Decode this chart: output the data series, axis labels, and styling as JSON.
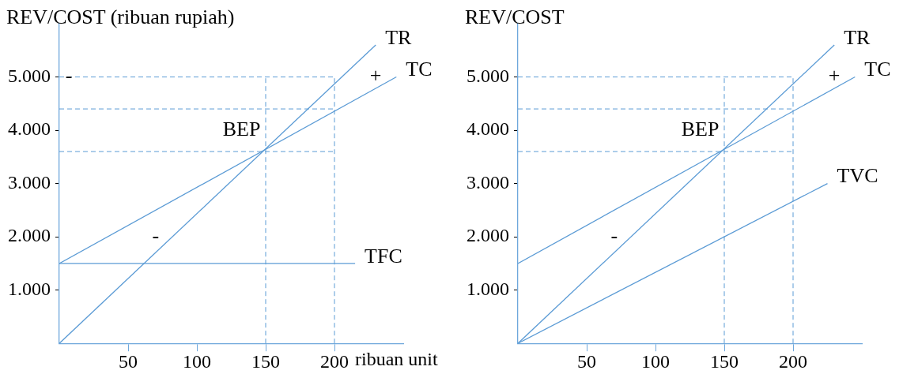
{
  "chart_data": [
    {
      "type": "line",
      "ylabel": "REV/COST (ribuan rupiah)",
      "xlabel": "ribuan unit",
      "xlim": [
        0,
        250
      ],
      "ylim": [
        0,
        6000
      ],
      "xticks": [
        50,
        100,
        150,
        200
      ],
      "yticks": [
        {
          "value": 1000,
          "label": "1.000"
        },
        {
          "value": 2000,
          "label": "2.000"
        },
        {
          "value": 3000,
          "label": "3.000"
        },
        {
          "value": 4000,
          "label": "4.000"
        },
        {
          "value": 5000,
          "label": "5.000"
        }
      ],
      "grid": false,
      "legend": false,
      "marker": "none",
      "line_style": "solid",
      "series": [
        {
          "name": "TR",
          "color": "#5b9bd5",
          "x": [
            0,
            230
          ],
          "values": [
            0,
            5600
          ]
        },
        {
          "name": "TC",
          "color": "#5b9bd5",
          "x": [
            0,
            245
          ],
          "values": [
            1500,
            5000
          ]
        },
        {
          "name": "TFC",
          "color": "#5b9bd5",
          "x": [
            0,
            215
          ],
          "values": [
            1500,
            1500
          ]
        }
      ],
      "ref_lines": [
        {
          "axis": "y",
          "value": 5000,
          "color": "#5b9bd5",
          "line_style": "dashed"
        },
        {
          "axis": "y",
          "value": 4400,
          "color": "#5b9bd5",
          "line_style": "dashed"
        },
        {
          "axis": "y",
          "value": 3600,
          "color": "#5b9bd5",
          "line_style": "dashed"
        },
        {
          "axis": "x",
          "value": 150,
          "color": "#5b9bd5",
          "line_style": "dashed"
        },
        {
          "axis": "x",
          "value": 200,
          "color": "#5b9bd5",
          "line_style": "dashed"
        }
      ],
      "annotations": [
        {
          "text": "-",
          "x": 7,
          "y": 5000
        },
        "+",
        "BEP",
        "-"
      ]
    },
    {
      "type": "line",
      "ylabel": "REV/COST",
      "xlim": [
        0,
        250
      ],
      "ylim": [
        0,
        6000
      ],
      "xticks": [
        50,
        100,
        150,
        200
      ],
      "yticks": [
        {
          "value": 1000,
          "label": "1.000"
        },
        {
          "value": 2000,
          "label": "2.000"
        },
        {
          "value": 3000,
          "label": "3.000"
        },
        {
          "value": 4000,
          "label": "4.000"
        },
        {
          "value": 5000,
          "label": "5.000"
        }
      ],
      "grid": false,
      "legend": false,
      "marker": "none",
      "line_style": "solid",
      "series": [
        {
          "name": "TR",
          "color": "#5b9bd5",
          "x": [
            0,
            230
          ],
          "values": [
            0,
            5600
          ]
        },
        {
          "name": "TC",
          "color": "#5b9bd5",
          "x": [
            0,
            245
          ],
          "values": [
            1500,
            5000
          ]
        },
        {
          "name": "TVC",
          "color": "#5b9bd5",
          "x": [
            0,
            225
          ],
          "values": [
            0,
            3000
          ]
        }
      ],
      "ref_lines": [
        {
          "axis": "y",
          "value": 5000,
          "color": "#5b9bd5",
          "line_style": "dashed"
        },
        {
          "axis": "y",
          "value": 4400,
          "color": "#5b9bd5",
          "line_style": "dashed"
        },
        {
          "axis": "y",
          "value": 3600,
          "color": "#5b9bd5",
          "line_style": "dashed"
        },
        {
          "axis": "x",
          "value": 150,
          "color": "#5b9bd5",
          "line_style": "dashed"
        },
        {
          "axis": "x",
          "value": 200,
          "color": "#5b9bd5",
          "line_style": "dashed"
        }
      ],
      "annotations": [
        "+",
        "BEP",
        "-"
      ]
    }
  ]
}
